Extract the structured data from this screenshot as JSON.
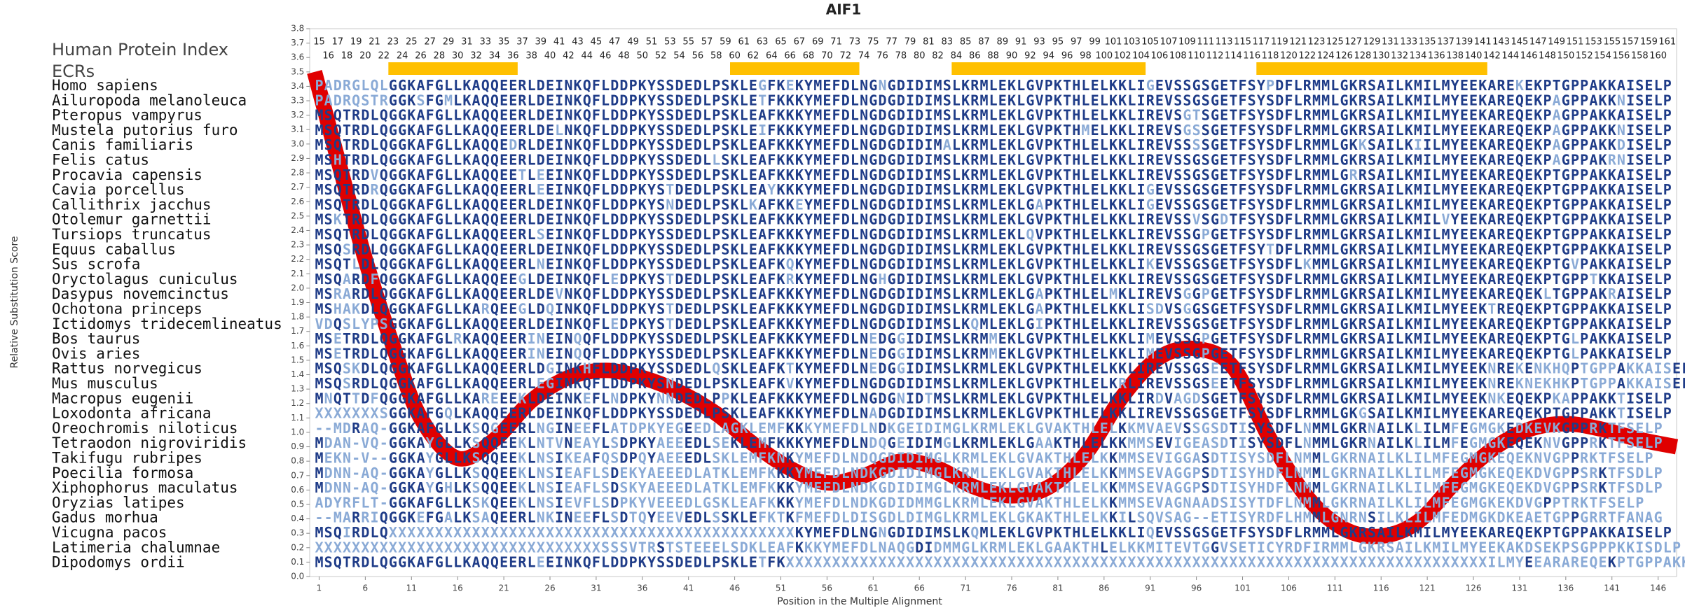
{
  "chart_data": {
    "type": "alignment",
    "title": "AIF1",
    "index_label": "Human Protein Index",
    "ecr_label": "ECRs",
    "xlabel": "Position in the Multiple Alignment",
    "ylabel": "Relative Substitution Score",
    "xlim": [
      0,
      148
    ],
    "xticks": [
      1,
      6,
      11,
      16,
      21,
      26,
      31,
      36,
      41,
      46,
      51,
      56,
      61,
      66,
      71,
      76,
      81,
      86,
      91,
      96,
      101,
      106,
      111,
      116,
      121,
      126,
      131,
      136,
      141,
      146
    ],
    "ylim": [
      0,
      3.8
    ],
    "yticks": [
      {
        "value": 0,
        "label": "0.0"
      },
      {
        "value": 0.1,
        "label": "0.1"
      },
      {
        "value": 0.2,
        "label": "0.2"
      },
      {
        "value": 0.3,
        "label": "0.3"
      },
      {
        "value": 0.4,
        "label": "0.4"
      },
      {
        "value": 0.5,
        "label": "0.5"
      },
      {
        "value": 0.6,
        "label": "0.6"
      },
      {
        "value": 0.7,
        "label": "0.7"
      },
      {
        "value": 0.8,
        "label": "0.8"
      },
      {
        "value": 0.9,
        "label": "0.9"
      },
      {
        "value": 1,
        "label": "1.0"
      },
      {
        "value": 1.1,
        "label": "1.1"
      },
      {
        "value": 1.2,
        "label": "1.2"
      },
      {
        "value": 1.3,
        "label": "1.3"
      },
      {
        "value": 1.4,
        "label": "1.4"
      },
      {
        "value": 1.5,
        "label": "1.5"
      },
      {
        "value": 1.6,
        "label": "1.6"
      },
      {
        "value": 1.7,
        "label": "1.7"
      },
      {
        "value": 1.8,
        "label": "1.8"
      },
      {
        "value": 1.9,
        "label": "1.9"
      },
      {
        "value": 2,
        "label": "2.0"
      },
      {
        "value": 2.1,
        "label": "2.1"
      },
      {
        "value": 2.2,
        "label": "2.2"
      },
      {
        "value": 2.3,
        "label": "2.3"
      },
      {
        "value": 2.4,
        "label": "2.4"
      },
      {
        "value": 2.5,
        "label": "2.5"
      },
      {
        "value": 2.6,
        "label": "2.6"
      },
      {
        "value": 2.7,
        "label": "2.7"
      },
      {
        "value": 2.8,
        "label": "2.8"
      },
      {
        "value": 2.9,
        "label": "2.9"
      },
      {
        "value": 3,
        "label": "3.0"
      },
      {
        "value": 3.1,
        "label": "3.1"
      },
      {
        "value": 3.2,
        "label": "3.2"
      },
      {
        "value": 3.3,
        "label": "3.3"
      },
      {
        "value": 3.4,
        "label": "3.4"
      },
      {
        "value": 3.5,
        "label": "3.5"
      },
      {
        "value": 3.6,
        "label": "3.6"
      },
      {
        "value": 3.7,
        "label": "3.7"
      },
      {
        "value": 3.8,
        "label": "3.8"
      }
    ],
    "residue_numbers": [
      15,
      16,
      17,
      18,
      19,
      20,
      21,
      22,
      23,
      24,
      25,
      26,
      27,
      28,
      29,
      30,
      31,
      32,
      33,
      34,
      35,
      36,
      37,
      38,
      39,
      40,
      41,
      42,
      43,
      44,
      45,
      46,
      47,
      48,
      49,
      50,
      51,
      52,
      53,
      54,
      55,
      56,
      57,
      58,
      59,
      60,
      61,
      62,
      63,
      64,
      65,
      66,
      67,
      68,
      69,
      70,
      71,
      72,
      73,
      74,
      75,
      76,
      77,
      78,
      79,
      80,
      81,
      82,
      83,
      84,
      85,
      86,
      87,
      88,
      89,
      90,
      91,
      92,
      93,
      94,
      95,
      96,
      97,
      98,
      99,
      100,
      101,
      102,
      103,
      104,
      105,
      106,
      107,
      108,
      109,
      110,
      111,
      112,
      113,
      114,
      115,
      116,
      117,
      118,
      119,
      120,
      121,
      122,
      123,
      124,
      125,
      126,
      127,
      128,
      129,
      130,
      131,
      132,
      133,
      134,
      135,
      136,
      137,
      138,
      139,
      140,
      141,
      142,
      143,
      144,
      145,
      146,
      147,
      148,
      149,
      150,
      151,
      152,
      153,
      154,
      155,
      156,
      157,
      158,
      159,
      160,
      161
    ],
    "ecr_color": "#ffc000",
    "ecrs": [
      {
        "start": 9,
        "end": 22
      },
      {
        "start": 46,
        "end": 59
      },
      {
        "start": 70,
        "end": 90
      },
      {
        "start": 103,
        "end": 127
      }
    ],
    "curve": {
      "color": "#e00000",
      "x": [
        0.5,
        3,
        6,
        9,
        12,
        16,
        20,
        24,
        28,
        32,
        36,
        40,
        44,
        48,
        52,
        56,
        60,
        64,
        68,
        72,
        76,
        80,
        84,
        88,
        92,
        96,
        100,
        104,
        108,
        112,
        116,
        120,
        124,
        128,
        132,
        136,
        140,
        144,
        148
      ],
      "values": [
        3.5,
        2.9,
        2.2,
        1.6,
        1.1,
        0.82,
        0.95,
        1.22,
        1.38,
        1.43,
        1.38,
        1.28,
        1.13,
        0.92,
        0.75,
        0.65,
        0.7,
        0.8,
        0.75,
        0.62,
        0.56,
        0.62,
        0.85,
        1.25,
        1.52,
        1.58,
        1.45,
        0.95,
        0.55,
        0.33,
        0.28,
        0.38,
        0.65,
        0.88,
        1.02,
        1.06,
        1.02,
        0.95,
        0.9
      ]
    },
    "residue_colors": {
      "conserved": "#1f3c88",
      "variable": "#8aaad6"
    },
    "species": [
      "Homo sapiens",
      "Ailuropoda melanoleuca",
      "Pteropus vampyrus",
      "Mustela putorius furo",
      "Canis familiaris",
      "Felis catus",
      "Procavia capensis",
      "Cavia porcellus",
      "Callithrix jacchus",
      "Otolemur garnettii",
      "Tursiops truncatus",
      "Equus caballus",
      "Sus scrofa",
      "Oryctolagus cuniculus",
      "Dasypus novemcinctus",
      "Ochotona princeps",
      "Ictidomys tridecemlineatus",
      "Bos taurus",
      "Ovis aries",
      "Rattus norvegicus",
      "Mus musculus",
      "Macropus eugenii",
      "Loxodonta africana",
      "Oreochromis niloticus",
      "Tetraodon nigroviridis",
      "Takifugu rubripes",
      "Poecilia formosa",
      "Xiphophorus maculatus",
      "Oryzias latipes",
      "Gadus morhua",
      "Vicugna pacos",
      "Latimeria chalumnae",
      "Dipodomys ordii"
    ],
    "sequences": [
      "PADRGLQLGGKAFGLLKAQQEERLDEINKQFLDDPKYSSDEDLPSKLEGFKEKYMEFDLNGNGDIDIMSLKRMLEKLGVPKTHLELKKLIGEVSSGSGETFSYPDFLRMMLGKRSAILKMILMYEEKAREKEKPTGPPAKKAISELP",
      "PADRQSTRGGKSFGMLKAQQEERLDEINKQFLDDPKYSSDEDLPSKLETFKKKYMEFDLNGDGDIDIMSLKRMLEKLGVPKTHLELKKLIREVSSGSGETFSYSDFLRMMLGKRSAILKMILMYEEKAREQEKPAGPPAKKNISELP",
      "MSQTRDLQGGKAFGLLKAQQEERLDEINKQFLDDPKYSSDEDLPSKLEAFKKKYMEFDLNGDGDIDIMSLKRMLEKLGVPKTHLELKKLIREVSGTSGETFSYSDFLRMMLGKRSAILKMILMYEEKAREQEKPAGPPAKKAISELP",
      "MSQTRDLQGGKAFGLLKAQQEERLDELNKQFLDDPKYSSDEDLPSKLEIFKKKYMEFDLNGDGDIDIMSLKRMLEKLGVPKTHMELKKLIREVSGSSGETFSYSDFLRMMLGKRSAILKMILMYEEKAREQEKPAGPPAKKNISELP",
      "MSQTRDLQGGKAFGLLKAQQEDRLDEINKQFLDDPKYSSDEDLPSKLEAFKKKYMEFDLNGDGDIDIMALKRMLEKLGVPKTHLELKKLIREVSSSSGETFSYSDFLRMMLGKKSAILKIILMYEEKAREQEKPAGPPAKKDISELP",
      "MSHTRDLQGGKAFGLLKAQQEERLDEINKQFLDDPKYSSDEDLLSKLEAFKKKYMEFDLNGDGDIDIMSLKRMLEKLGVPKTHLELKKLIREVSSGSGETFSYSDFLRMMLGKRSAILKMILMYEEKAREQEKPAGPPAKRNISELP",
      "MSQTRDVQGGKAFGLLKAQQEETLEEINKQFLDDPKYSSDEDLPSKLEAFKKKYMEFDLNGDGDIDIMSLKRMLEKLGVPKTHLELKKLIREVSSGSGETFSYSDFLRMMLGRRSAILKMILMYEEKAREQEKPTGPPAKKAISELP",
      "MSQTRDRQGGKAFGLLKAQQEERLEEINKQFLDDPKYSTDEDLPSKLEAYKKKYMEFDLNGDGDIDIMSLKRMLEKLGVPKTHLELKKLIGEVSSGSGETFSYSDFLRMMLGKRSAILKMILMYEEKAREQEKPTGPPAKKAISELP",
      "MSQTRDLQGGKAFGLLKAQQEERLDEINKQFLDDPKYSNDEDLPSKLKAFKKEYMEFDLNGDGDIDIMSLKRMLEKLGAPKTHLELKKLIGEVSSGSGETFSYSDFLRMMLGKRSAILKMILMYEEKAREQEKPTGPPAKKAISELP",
      "MSKTRDLQGGKAFGLLKAQQEERLDEINKQFLDDPKYSSDEDLPSKLEAFKKKYMEFDLNGDGDIDIMSLKRMLEKLGVPKTHLELKKLIREVSSVSGDTFSYSDFLRMMLGKRSAILKMILVYEEKAREQEKPTGPPAKKAISELP",
      "MSQTRDLQGGKAFGLLKAQQEERLSEINKQFLDDPKYSSDEDLPSKLEAFKKKYMEFDLNGDGDIDIMSLKRMLEKLQVPKTHLELKKLIREVSSGPGETFSYSDFLRMMLGKRSAILKMILMYEEKAREQEKPTGPPAKKAISELP",
      "MSQSRDLQGGKAFGLLKAQQEERLDEINKQFLDDPKYSSDEDLPSKLEAFKKKYMEFDLNGDGDIDIMSLKRMLEKLGVPKTHLELKKLIREVSSGSGETFSYTDFLRMMLGKRSAILKMILMYEEKAREQEKPTGPPAKKAISELP",
      "MSQTLDLQGGKAFGLLKAQQEERLNEINKQFLDDPKYSSDEDLPSKLEAFKQKYMEFDLNGDGDIDIMSLKRMLEKLGVPKTHLELKKLIKEVSSGSGETFSYSDFLKMMLGKRSAILKMILMYEEKAREQEKPTGVPAKKAISELP",
      "MSQARDFQGGKAFGLLKAQQEEGLDEINKQFLEDPKYSTDEDLPSKLEAFKRKYMEFDLNGHGDIDIMSLKRMLEKLGVPKTHLELKKLIREVSSGSGETFSYSDFLRMMLGKRSAILKMILMYEEKAREQEKPTGPPTKKAISELP",
      "MSRARDLQGGKAFGLLKAQQEERLDEVNKQFLDDPKYSSDEDLPSKLEAFKKKYMEFDLNGDGDIDIMSLKRMLEKLGAPKTHLELMKLIREVSGGPGETFSYSDFLRMMLGKRSAILKMILMYEEKAREQEKLTGPPAKRAISELP",
      "MSHAKDLQGGKAFGLLKARQEEGLDQINKQFLDDPKYSTDEDLPSKLEAFKKKYMEFDLNGDGDIDIMSLKRMLEKLGAPKTHLELKKLISDVSGGSGETFSYSDFLRMMLGKRSAILKMILMYEEKTREQEKPTGPPAKKAISELP",
      "VDQSLYPSGGKAFGLLKAQQEERLDEINKQFLEDPKYSTDEDLPSKLEAFKKKYMEFDLNGDGDIDIMSLKQMLEKLGIPKTHLELKKLIREVSSGSGETFSYSDFLRMMLGKRSAILKMILMYEEKAREQEKPTGPPAKKAISELP",
      "MSETRDLQGGKAFGLRKAQQEERINEINQQFLDDPKYSSDEDLPSKLEAFKKKYMEFDLNEDGGIDIMSLKRMMEKLGVPKTHLELKKLIMEVSSGPGETFSYSDFLRMMLGKRSAILKMILMYEEKAREQEKPTGLPAKKAISELP",
      "MSETRDLQGGKAFGLLKAQQEERINEINQQFLDDPKYSSDEDLPSKLEAFKKKYMEFDLNEDGGIDIMSLKRMMEKLGVPKTHLELKKLIMEVSSGPGETFSYSDFLRMMLGKRSAILKMILMYEEKAREQEKPTGLPAKKAISELP",
      "MSQSKDLQGGKAFGLLKAQQEERLDGINKHFLDDPKYSSDEDLQSKLEAFKTKYMEFDLNEDGGIDIMSLKRMLEKLGVPKTHLELKKLIREVSSGSEETFSYSDFLRMMLGKRSAILKMILMYEEKNREKENKHQPTGPPAKKAISELP",
      "MSQSRDLQGGKAFGLLKAQQEERLEGINKQFLDDPKYSNDEDLPSKLEAFKVKYMEFDLNGDGDIDIMSLKRMLEKLGVPKTHLELKRLIREVSSGSEETFSYSDFLRMMLGKRSAILKMILMYEEKNREKNEKHKPTGPPAKKAISELP",
      "MNQTTDFQGGKAFGLLKAREEEKLDEINKEFLNDPKYNNDEDLPPKLEAFKKKYMEFDLNGDGNIDTMSLKRMLEKLGVPKTHLELKKLIRDVAGDSGETFSYSDFLRMMLGKRSAILKMILMYEEKNKEQEKPKAPPAKKTISELP",
      "XXXXXXXSGGKAFGQLKAQQEERLDEINKQFLDDPKYSSDEDLPSKLEAFKKKYMEFDLNADGDIDIMSLKRMLEKLGVPKTHLELKKLIREVSSGSGETFSYSDFLRMMLGKGSAILKMILMYEEKAREQEKPTGPPAKKTISELP",
      "--MDRAQ-GGKAFGLLKSQGEERLNGINEEFLATDPKYEGEEDLAGKLEMFKKKYMEFDLNDKGEIDIMGLKRMLEKLGVAKTHLELKKMVAEVSSGSDTISYSDFLNMMLGKRNAILKLILMFEGMGKEDKEVKGPPRKTFSELP",
      "MDAN-VQ-GGKAYGLLKSQQEEKLNTVNEAYLSDPKYAEEEDLSEKLEMFKKKYMEFDLNDQGEIDIMGLKRMLEKLGAAKTHLELKKMMSEVIGEASDTISYSDFLNMMLGKRNAILKLILMFEGMGKEQEKNVGPPRKTFSELP",
      "MEKN-V--GGKAYGLLKSQQEEKLNSIKEAFQSDPQYAEEEDLSKLEMFKNKYMEFDLNDQGDIDIMGLKRMLEKLGVAKTHLELKKMMSEVIGGASDTISYSDFLNMMLGKRNAILKLILMFEGMGKEQEKNVGPPRKTFSELP",
      "MDNN-AQ-GGKAYGLLKSQQEEKLNSIEAFLSDEKYAEEEDLATKLEMFKKKYMEFDLNDKGDIDIMGLKRMLEKLGVAKTHLELKKMMSEVAGGPSDTISYHDFLNMMLGKRNAILKLILMFEGMGKEQEKDVGPPSRKTFSDLP",
      "MDNN-AQ-GGKAYGHLKSQQEEKLNSIEAFLSDSKYAEEEDLATKLEMFKKKYMEFDLNDKGDIDIMGLKRMLEKLGVAKTHLELKKMMSEVAGGPSDTISYHDFLNMMLGKRNAILKLILMFEGMGKEQEKDVGPPSRKTFSDLP",
      "ADYRFLT-GGKAFGLLKSKQEEKLNSIEVFLSDPKYVEEEDLGSKLEAFKKKYMEFDLNDKGDIDMMGLKRMLEKLGVAKTHLELKKMMSEVAGNAADSISYTDFLNMMLGKRNAILKLILMFEGMGKEKDVGPPTRKTFSELP",
      "--MARRIQGGKEFGALKSAQEERLNKINEEFLSDTQYEEVEDLSSKLEFKTKFMEFDLDISGDLDIMGLKRMLEKLGKAKTHLELKKILSQVSAG--ETISYRDFLHMMLGNRNSILKLILMFEDMGKDKEAETGPPGRRTFANAG",
      "MSQIRDLQXXXXXXXXXXXXXXXXXXXXXXXXXXXXXXXXXXXXXXXXXXXXKYMEFDLNGNGDIDIMSLKQMLEKLGVPKTHLELKKLIQEVSSGSGETFSYSDFLRMMLGKRSAILKMILMYEEKAREQEKPTGPPAKKAISELP",
      "XXXXXXXXXXXXXXXXXXXXXXXXXXXXXXXSSSVTRSTSTEEELSDKLEAFKKKYMEFDLNAQGDIDMMGLKRMLEKLGAAKTHLELKKMITEVTGGVSETICYRDFIRMMLGKRSAILKMILMYEEKAKDSEKPSGPPPKKISDLP",
      "MSQTRDLQGGKAFGLLKAQQEERLEEINKQFLDDPKYSSDEDLPSKLETFKXXXXXXXXXXXXXXXXXXXXXXXXXXXXXXXXXXXXXXXXXXXXXXXXXXXXXXXXXXXXXXXXXXXXXXXXXXXXILMYEEARAREQEKPTGPPAKKAISELP"
    ]
  }
}
